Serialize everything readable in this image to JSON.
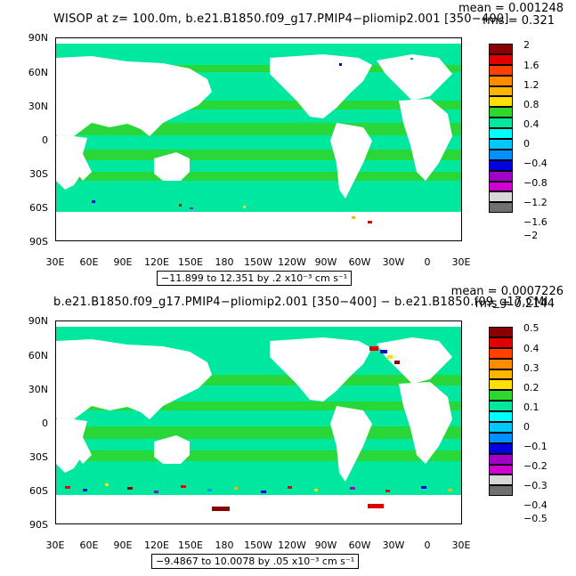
{
  "panels": [
    {
      "title": "WISOP at z= 100.0m, b.e21.B1850.f09_g17.PMIP4−pliomip2.001 [350−400]",
      "mean": "mean = 0.001248",
      "rms": "rms = 0.321",
      "range_text": "−11.899 to 12.351 by .2 x10⁻³ cm s⁻¹",
      "colorbar_labels": [
        "2",
        "1.6",
        "1.2",
        "0.8",
        "0.4",
        "0",
        "−0.4",
        "−0.8",
        "−1.2",
        "−1.6",
        "−2"
      ]
    },
    {
      "title": "b.e21.B1850.f09_g17.PMIP4−pliomip2.001 [350−400] − b.e21.B1850.f09_g17.CMI",
      "mean": "mean = 0.0007226",
      "rms": "rms = 0.2144",
      "range_text": "−9.4867 to 10.0078 by .05 x10⁻³ cm s⁻¹",
      "colorbar_labels": [
        "0.5",
        "0.4",
        "0.3",
        "0.2",
        "0.1",
        "0",
        "−0.1",
        "−0.2",
        "−0.3",
        "−0.4",
        "−0.5"
      ]
    }
  ],
  "lat_labels": [
    "90N",
    "60N",
    "30N",
    "0",
    "30S",
    "60S",
    "90S"
  ],
  "lon_labels": [
    "30E",
    "60E",
    "90E",
    "120E",
    "150E",
    "180",
    "150W",
    "120W",
    "90W",
    "60W",
    "30W",
    "0",
    "30E"
  ],
  "colorbar_colors": [
    "#8b0000",
    "#e00000",
    "#ff4000",
    "#ff8c00",
    "#ffb400",
    "#ffe000",
    "#2ed62e",
    "#00e8a0",
    "#00ffff",
    "#00c8ff",
    "#0090ff",
    "#0000e0",
    "#a000c8",
    "#d000d0",
    "#d8d8d8",
    "#707070"
  ],
  "colors": {
    "ocean_main": "#2ed62e",
    "ocean_alt": "#00e8a0",
    "land": "#ffffff"
  }
}
